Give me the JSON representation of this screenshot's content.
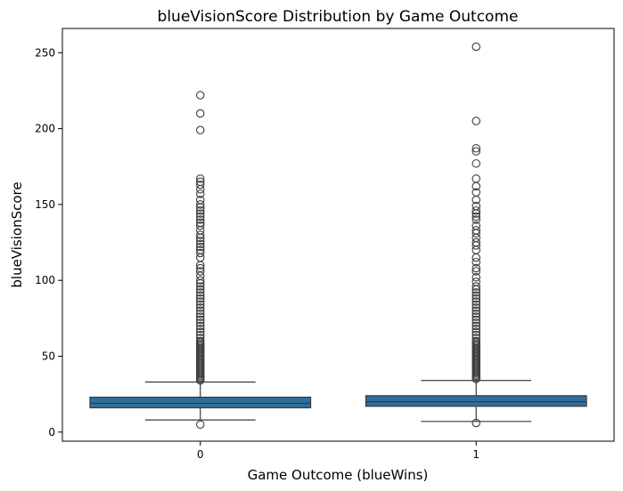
{
  "chart_data": {
    "type": "box",
    "title": "blueVisionScore Distribution by Game Outcome",
    "xlabel": "Game Outcome (blueWins)",
    "ylabel": "blueVisionScore",
    "categories": [
      "0",
      "1"
    ],
    "ylim": [
      -6,
      266
    ],
    "yticks": [
      0,
      50,
      100,
      150,
      200,
      250
    ],
    "box_color": "#2f6f9f",
    "edge_color": "#3b3b3b",
    "boxes": [
      {
        "category": "0",
        "whislo": 8,
        "q1": 16,
        "median": 19,
        "q3": 23,
        "whishi": 33,
        "outliers": [
          5,
          34,
          35,
          36,
          37,
          38,
          39,
          40,
          41,
          42,
          43,
          44,
          45,
          46,
          47,
          48,
          49,
          50,
          51,
          52,
          53,
          54,
          55,
          56,
          57,
          58,
          59,
          60,
          62,
          64,
          66,
          68,
          70,
          72,
          74,
          76,
          78,
          80,
          82,
          84,
          86,
          88,
          90,
          92,
          94,
          96,
          98,
          100,
          103,
          106,
          108,
          110,
          115,
          118,
          120,
          122,
          124,
          126,
          128,
          130,
          133,
          136,
          138,
          140,
          142,
          144,
          146,
          148,
          150,
          153,
          157,
          160,
          163,
          165,
          167,
          199,
          210,
          222
        ]
      },
      {
        "category": "1",
        "whislo": 7,
        "q1": 17,
        "median": 20,
        "q3": 24,
        "whishi": 34,
        "outliers": [
          6,
          35,
          36,
          37,
          38,
          39,
          40,
          41,
          42,
          43,
          44,
          45,
          46,
          47,
          48,
          49,
          50,
          51,
          52,
          53,
          54,
          55,
          56,
          57,
          58,
          59,
          60,
          62,
          64,
          66,
          68,
          70,
          72,
          74,
          76,
          78,
          80,
          82,
          84,
          86,
          88,
          90,
          92,
          94,
          96,
          99,
          102,
          106,
          108,
          112,
          115,
          120,
          123,
          125,
          128,
          131,
          133,
          136,
          140,
          142,
          144,
          146,
          149,
          153,
          158,
          162,
          167,
          177,
          185,
          187,
          205,
          254
        ]
      }
    ]
  }
}
